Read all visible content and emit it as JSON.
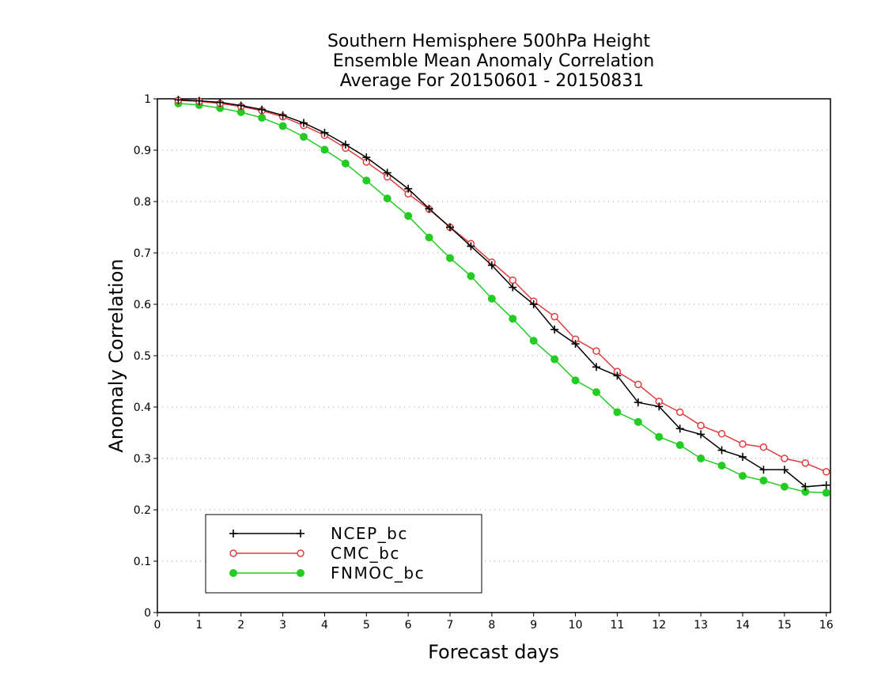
{
  "chart_data": {
    "type": "line",
    "title": [
      "Southern Hemisphere 500hPa Height",
      "Ensemble Mean Anomaly Correlation",
      "Average For 20150601 - 20150831"
    ],
    "xlabel": "Forecast days",
    "ylabel": "Anomaly Correlation",
    "xlim": [
      0,
      16.1
    ],
    "ylim": [
      0,
      1
    ],
    "xticks": [
      0,
      1,
      2,
      3,
      4,
      5,
      6,
      7,
      8,
      9,
      10,
      11,
      12,
      13,
      14,
      15,
      16
    ],
    "yticks": [
      0,
      0.1,
      0.2,
      0.3,
      0.4,
      0.5,
      0.6,
      0.7,
      0.8,
      0.9,
      1
    ],
    "xtick_labels": [
      "0",
      "1",
      "2",
      "3",
      "4",
      "5",
      "6",
      "7",
      "8",
      "9",
      "10",
      "11",
      "12",
      "13",
      "14",
      "15",
      "16"
    ],
    "ytick_labels": [
      "0",
      "0.1",
      "0.2",
      "0.3",
      "0.4",
      "0.5",
      "0.6",
      "0.7",
      "0.8",
      "0.9",
      "1"
    ],
    "grid": "horizontal dotted",
    "legend_position": "bottom-left",
    "x": [
      0.5,
      1,
      1.5,
      2,
      2.5,
      3,
      3.5,
      4,
      4.5,
      5,
      5.5,
      6,
      6.5,
      7,
      7.5,
      8,
      8.5,
      9,
      9.5,
      10,
      10.5,
      11,
      11.5,
      12,
      12.5,
      13,
      13.5,
      14,
      14.5,
      15,
      15.5,
      16
    ],
    "series": [
      {
        "name": "NCEP_bc",
        "color": "#000000",
        "marker": "plus",
        "values": [
          0.998,
          0.996,
          0.993,
          0.987,
          0.979,
          0.968,
          0.953,
          0.934,
          0.911,
          0.886,
          0.856,
          0.825,
          0.786,
          0.75,
          0.713,
          0.676,
          0.633,
          0.6,
          0.551,
          0.523,
          0.478,
          0.461,
          0.409,
          0.401,
          0.358,
          0.347,
          0.316,
          0.303,
          0.278,
          0.278,
          0.245,
          0.248
        ]
      },
      {
        "name": "CMC_bc",
        "color": "#e03c3c",
        "marker": "open-circle",
        "values": [
          0.997,
          0.995,
          0.991,
          0.985,
          0.977,
          0.965,
          0.948,
          0.929,
          0.904,
          0.877,
          0.848,
          0.815,
          0.785,
          0.75,
          0.718,
          0.682,
          0.647,
          0.606,
          0.576,
          0.532,
          0.509,
          0.469,
          0.444,
          0.411,
          0.39,
          0.364,
          0.348,
          0.328,
          0.322,
          0.3,
          0.291,
          0.274
        ]
      },
      {
        "name": "FNMOC_bc",
        "color": "#22cc22",
        "marker": "filled-circle",
        "values": [
          0.991,
          0.988,
          0.982,
          0.974,
          0.963,
          0.947,
          0.926,
          0.901,
          0.874,
          0.841,
          0.806,
          0.772,
          0.73,
          0.69,
          0.655,
          0.611,
          0.572,
          0.529,
          0.493,
          0.452,
          0.429,
          0.39,
          0.371,
          0.342,
          0.326,
          0.3,
          0.286,
          0.266,
          0.257,
          0.245,
          0.235,
          0.233
        ]
      }
    ]
  }
}
